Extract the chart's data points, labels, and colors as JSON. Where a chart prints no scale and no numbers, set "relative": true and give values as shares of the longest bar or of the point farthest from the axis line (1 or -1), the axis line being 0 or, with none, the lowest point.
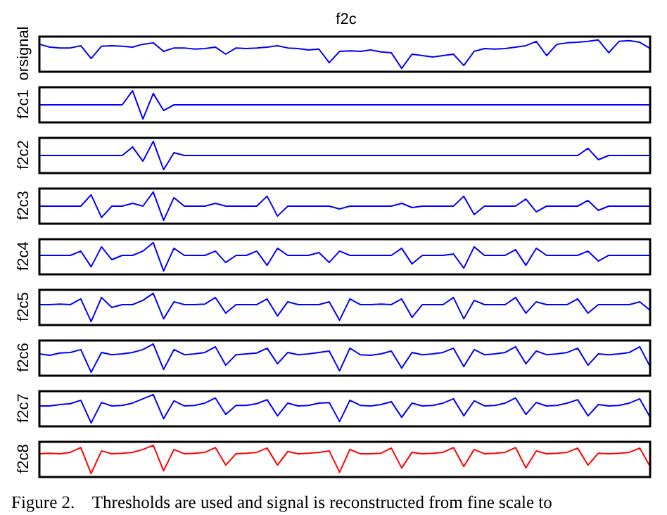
{
  "chart_data": [
    {
      "type": "line",
      "relative": true,
      "title": "f2c",
      "ylabel": "orsignal",
      "marker": "none",
      "color": "#0000ff",
      "categories": [
        null,
        null,
        null,
        null,
        null,
        null,
        null,
        null,
        null,
        null,
        null,
        null,
        null,
        null,
        null,
        null,
        null,
        null,
        null,
        null,
        null,
        null,
        null,
        null,
        null,
        null,
        null,
        null,
        null,
        null,
        null,
        null,
        null,
        null,
        null,
        null,
        null,
        null,
        null,
        null,
        null,
        null,
        null,
        null,
        null,
        null,
        null,
        null,
        null,
        null,
        null,
        null,
        null,
        null,
        null,
        null,
        null,
        null,
        null,
        null
      ],
      "values": [
        0.85,
        0.75,
        0.72,
        0.72,
        0.8,
        0.35,
        0.78,
        0.8,
        0.78,
        0.75,
        0.85,
        0.9,
        0.6,
        0.72,
        0.72,
        0.68,
        0.7,
        0.75,
        0.5,
        0.72,
        0.7,
        0.72,
        0.75,
        0.8,
        0.72,
        0.7,
        0.65,
        0.68,
        0.2,
        0.6,
        0.62,
        0.6,
        0.65,
        0.58,
        0.55,
        0.0,
        0.5,
        0.45,
        0.4,
        0.45,
        0.5,
        0.1,
        0.6,
        0.7,
        0.68,
        0.7,
        0.75,
        0.8,
        0.95,
        0.45,
        0.85,
        0.9,
        0.92,
        0.95,
        1.0,
        0.55,
        0.95,
        0.98,
        0.92,
        0.7
      ]
    },
    {
      "type": "line",
      "relative": true,
      "ylabel": "f2c1",
      "marker": "none",
      "color": "#0000ff",
      "categories": [
        null,
        null,
        null,
        null,
        null,
        null,
        null,
        null,
        null,
        null,
        null,
        null,
        null,
        null,
        null,
        null,
        null,
        null,
        null,
        null,
        null,
        null,
        null,
        null,
        null,
        null,
        null,
        null,
        null,
        null,
        null,
        null,
        null,
        null,
        null,
        null,
        null,
        null,
        null,
        null,
        null,
        null,
        null,
        null,
        null,
        null,
        null,
        null,
        null,
        null,
        null,
        null,
        null,
        null,
        null,
        null,
        null,
        null,
        null,
        null
      ],
      "values": [
        0.5,
        0.5,
        0.5,
        0.5,
        0.5,
        0.5,
        0.5,
        0.5,
        0.5,
        1.0,
        0.0,
        0.9,
        0.3,
        0.5,
        0.5,
        0.5,
        0.5,
        0.5,
        0.5,
        0.5,
        0.5,
        0.5,
        0.5,
        0.5,
        0.5,
        0.5,
        0.5,
        0.5,
        0.5,
        0.5,
        0.5,
        0.5,
        0.5,
        0.5,
        0.5,
        0.5,
        0.5,
        0.5,
        0.5,
        0.5,
        0.5,
        0.5,
        0.5,
        0.5,
        0.5,
        0.5,
        0.5,
        0.5,
        0.5,
        0.5,
        0.5,
        0.5,
        0.5,
        0.5,
        0.5,
        0.5,
        0.5,
        0.5,
        0.5,
        0.5
      ]
    },
    {
      "type": "line",
      "relative": true,
      "ylabel": "f2c2",
      "marker": "none",
      "color": "#0000ff",
      "categories": [
        null,
        null,
        null,
        null,
        null,
        null,
        null,
        null,
        null,
        null,
        null,
        null,
        null,
        null,
        null,
        null,
        null,
        null,
        null,
        null,
        null,
        null,
        null,
        null,
        null,
        null,
        null,
        null,
        null,
        null,
        null,
        null,
        null,
        null,
        null,
        null,
        null,
        null,
        null,
        null,
        null,
        null,
        null,
        null,
        null,
        null,
        null,
        null,
        null,
        null,
        null,
        null,
        null,
        null,
        null,
        null,
        null,
        null,
        null,
        null
      ],
      "values": [
        0.5,
        0.5,
        0.5,
        0.5,
        0.5,
        0.5,
        0.5,
        0.5,
        0.5,
        0.8,
        0.3,
        1.0,
        0.0,
        0.6,
        0.5,
        0.5,
        0.5,
        0.5,
        0.5,
        0.5,
        0.5,
        0.5,
        0.5,
        0.5,
        0.5,
        0.5,
        0.5,
        0.5,
        0.5,
        0.5,
        0.5,
        0.5,
        0.5,
        0.5,
        0.5,
        0.5,
        0.5,
        0.5,
        0.5,
        0.5,
        0.5,
        0.5,
        0.5,
        0.5,
        0.5,
        0.5,
        0.5,
        0.5,
        0.5,
        0.5,
        0.5,
        0.5,
        0.5,
        0.75,
        0.35,
        0.5,
        0.5,
        0.5,
        0.5,
        0.5
      ]
    },
    {
      "type": "line",
      "relative": true,
      "ylabel": "f2c3",
      "marker": "none",
      "color": "#0000ff",
      "categories": [
        null,
        null,
        null,
        null,
        null,
        null,
        null,
        null,
        null,
        null,
        null,
        null,
        null,
        null,
        null,
        null,
        null,
        null,
        null,
        null,
        null,
        null,
        null,
        null,
        null,
        null,
        null,
        null,
        null,
        null,
        null,
        null,
        null,
        null,
        null,
        null,
        null,
        null,
        null,
        null,
        null,
        null,
        null,
        null,
        null,
        null,
        null,
        null,
        null,
        null,
        null,
        null,
        null,
        null,
        null,
        null,
        null,
        null,
        null,
        null
      ],
      "values": [
        0.5,
        0.5,
        0.5,
        0.5,
        0.5,
        0.9,
        0.1,
        0.5,
        0.5,
        0.6,
        0.5,
        1.0,
        0.0,
        0.8,
        0.5,
        0.5,
        0.5,
        0.6,
        0.5,
        0.5,
        0.5,
        0.5,
        0.85,
        0.15,
        0.5,
        0.5,
        0.5,
        0.5,
        0.5,
        0.4,
        0.5,
        0.5,
        0.5,
        0.5,
        0.5,
        0.6,
        0.45,
        0.5,
        0.5,
        0.5,
        0.5,
        0.85,
        0.2,
        0.5,
        0.5,
        0.5,
        0.5,
        0.75,
        0.3,
        0.5,
        0.5,
        0.5,
        0.5,
        0.7,
        0.35,
        0.5,
        0.5,
        0.5,
        0.5,
        0.5
      ]
    },
    {
      "type": "line",
      "relative": true,
      "ylabel": "f2c4",
      "marker": "none",
      "color": "#0000ff",
      "categories": [
        null,
        null,
        null,
        null,
        null,
        null,
        null,
        null,
        null,
        null,
        null,
        null,
        null,
        null,
        null,
        null,
        null,
        null,
        null,
        null,
        null,
        null,
        null,
        null,
        null,
        null,
        null,
        null,
        null,
        null,
        null,
        null,
        null,
        null,
        null,
        null,
        null,
        null,
        null,
        null,
        null,
        null,
        null,
        null,
        null,
        null,
        null,
        null,
        null,
        null,
        null,
        null,
        null,
        null,
        null,
        null,
        null,
        null,
        null,
        null
      ],
      "values": [
        0.55,
        0.55,
        0.55,
        0.55,
        0.7,
        0.15,
        0.85,
        0.4,
        0.55,
        0.55,
        0.7,
        1.0,
        0.0,
        0.8,
        0.55,
        0.55,
        0.55,
        0.7,
        0.3,
        0.55,
        0.55,
        0.7,
        0.2,
        0.8,
        0.55,
        0.55,
        0.55,
        0.65,
        0.3,
        0.7,
        0.55,
        0.55,
        0.55,
        0.55,
        0.55,
        0.8,
        0.25,
        0.55,
        0.55,
        0.55,
        0.6,
        0.1,
        0.85,
        0.55,
        0.55,
        0.55,
        0.75,
        0.2,
        0.8,
        0.55,
        0.55,
        0.55,
        0.55,
        0.7,
        0.35,
        0.55,
        0.55,
        0.55,
        0.55,
        0.55
      ]
    },
    {
      "type": "line",
      "relative": true,
      "ylabel": "f2c5",
      "marker": "none",
      "color": "#0000ff",
      "categories": [
        null,
        null,
        null,
        null,
        null,
        null,
        null,
        null,
        null,
        null,
        null,
        null,
        null,
        null,
        null,
        null,
        null,
        null,
        null,
        null,
        null,
        null,
        null,
        null,
        null,
        null,
        null,
        null,
        null,
        null,
        null,
        null,
        null,
        null,
        null,
        null,
        null,
        null,
        null,
        null,
        null,
        null,
        null,
        null,
        null,
        null,
        null,
        null,
        null,
        null,
        null,
        null,
        null,
        null,
        null,
        null,
        null,
        null,
        null,
        null
      ],
      "values": [
        0.6,
        0.6,
        0.62,
        0.6,
        0.8,
        0.0,
        0.85,
        0.5,
        0.6,
        0.6,
        0.75,
        1.0,
        0.1,
        0.7,
        0.6,
        0.6,
        0.62,
        0.85,
        0.3,
        0.6,
        0.6,
        0.6,
        0.8,
        0.2,
        0.7,
        0.6,
        0.6,
        0.6,
        0.7,
        0.05,
        0.8,
        0.6,
        0.6,
        0.62,
        0.6,
        0.8,
        0.15,
        0.6,
        0.6,
        0.6,
        0.85,
        0.1,
        0.75,
        0.6,
        0.6,
        0.6,
        0.85,
        0.3,
        0.7,
        0.6,
        0.6,
        0.6,
        0.8,
        0.3,
        0.6,
        0.6,
        0.6,
        0.6,
        0.7,
        0.4
      ]
    },
    {
      "type": "line",
      "relative": true,
      "ylabel": "f2c6",
      "marker": "none",
      "color": "#0000ff",
      "categories": [
        null,
        null,
        null,
        null,
        null,
        null,
        null,
        null,
        null,
        null,
        null,
        null,
        null,
        null,
        null,
        null,
        null,
        null,
        null,
        null,
        null,
        null,
        null,
        null,
        null,
        null,
        null,
        null,
        null,
        null,
        null,
        null,
        null,
        null,
        null,
        null,
        null,
        null,
        null,
        null,
        null,
        null,
        null,
        null,
        null,
        null,
        null,
        null,
        null,
        null,
        null,
        null,
        null,
        null,
        null,
        null,
        null,
        null,
        null,
        null
      ],
      "values": [
        0.65,
        0.6,
        0.68,
        0.7,
        0.8,
        0.0,
        0.7,
        0.62,
        0.65,
        0.7,
        0.8,
        1.0,
        0.1,
        0.8,
        0.62,
        0.65,
        0.7,
        0.9,
        0.25,
        0.62,
        0.65,
        0.68,
        0.85,
        0.3,
        0.7,
        0.62,
        0.65,
        0.7,
        0.75,
        0.05,
        0.85,
        0.62,
        0.6,
        0.65,
        0.75,
        0.15,
        0.7,
        0.62,
        0.65,
        0.7,
        0.85,
        0.2,
        0.8,
        0.62,
        0.65,
        0.7,
        0.9,
        0.3,
        0.75,
        0.62,
        0.65,
        0.7,
        0.85,
        0.25,
        0.65,
        0.62,
        0.65,
        0.7,
        0.9,
        0.2
      ]
    },
    {
      "type": "line",
      "relative": true,
      "ylabel": "f2c7",
      "marker": "none",
      "color": "#0000ff",
      "categories": [
        null,
        null,
        null,
        null,
        null,
        null,
        null,
        null,
        null,
        null,
        null,
        null,
        null,
        null,
        null,
        null,
        null,
        null,
        null,
        null,
        null,
        null,
        null,
        null,
        null,
        null,
        null,
        null,
        null,
        null,
        null,
        null,
        null,
        null,
        null,
        null,
        null,
        null,
        null,
        null,
        null,
        null,
        null,
        null,
        null,
        null,
        null,
        null,
        null,
        null,
        null,
        null,
        null,
        null,
        null,
        null,
        null,
        null,
        null,
        null
      ],
      "values": [
        0.6,
        0.6,
        0.65,
        0.68,
        0.8,
        0.0,
        0.72,
        0.6,
        0.62,
        0.7,
        0.85,
        1.0,
        0.15,
        0.78,
        0.6,
        0.62,
        0.7,
        0.88,
        0.3,
        0.62,
        0.62,
        0.68,
        0.82,
        0.25,
        0.7,
        0.6,
        0.62,
        0.7,
        0.72,
        0.05,
        0.8,
        0.62,
        0.6,
        0.65,
        0.75,
        0.2,
        0.7,
        0.6,
        0.62,
        0.7,
        0.85,
        0.25,
        0.78,
        0.6,
        0.62,
        0.7,
        0.88,
        0.3,
        0.72,
        0.6,
        0.62,
        0.7,
        0.82,
        0.25,
        0.65,
        0.6,
        0.62,
        0.7,
        0.85,
        0.2
      ]
    },
    {
      "type": "line",
      "relative": true,
      "ylabel": "f2c8",
      "marker": "none",
      "color": "#ff0000",
      "categories": [
        null,
        null,
        null,
        null,
        null,
        null,
        null,
        null,
        null,
        null,
        null,
        null,
        null,
        null,
        null,
        null,
        null,
        null,
        null,
        null,
        null,
        null,
        null,
        null,
        null,
        null,
        null,
        null,
        null,
        null,
        null,
        null,
        null,
        null,
        null,
        null,
        null,
        null,
        null,
        null,
        null,
        null,
        null,
        null,
        null,
        null,
        null,
        null,
        null,
        null,
        null,
        null,
        null,
        null,
        null,
        null,
        null,
        null,
        null,
        null
      ],
      "values": [
        0.7,
        0.72,
        0.7,
        0.75,
        0.92,
        0.0,
        0.8,
        0.7,
        0.72,
        0.75,
        0.85,
        1.0,
        0.1,
        0.85,
        0.7,
        0.72,
        0.75,
        0.92,
        0.3,
        0.7,
        0.72,
        0.75,
        0.9,
        0.3,
        0.78,
        0.7,
        0.72,
        0.75,
        0.8,
        0.05,
        0.85,
        0.7,
        0.7,
        0.72,
        0.9,
        0.2,
        0.75,
        0.7,
        0.72,
        0.75,
        0.92,
        0.25,
        0.85,
        0.7,
        0.72,
        0.75,
        0.92,
        0.2,
        0.8,
        0.7,
        0.72,
        0.75,
        0.9,
        0.3,
        0.72,
        0.7,
        0.72,
        0.75,
        0.9,
        0.25
      ],
      "annotations": [
        "Figure 2.    Thresholds are used and signal is reconstructed from fine scale to"
      ]
    }
  ]
}
